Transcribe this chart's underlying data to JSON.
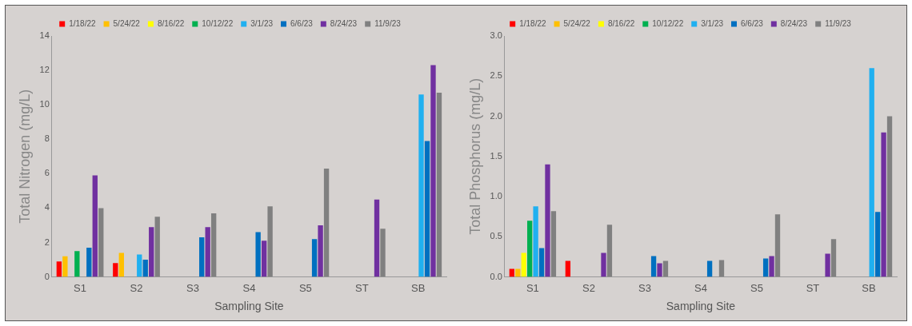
{
  "chart_data": [
    {
      "type": "bar",
      "categories": [
        "S1",
        "S2",
        "S3",
        "S4",
        "S5",
        "ST",
        "SB"
      ],
      "xlabel": "Sampling Site",
      "ylabel": "Total Nitrogen (mg/L)",
      "ylim": [
        0,
        14
      ],
      "yticks": [
        0,
        2,
        4,
        6,
        8,
        10,
        12,
        14
      ],
      "grid": false,
      "legend": "top",
      "series": [
        {
          "name": "1/18/22",
          "color": "#ff0000",
          "values": [
            0.9,
            0.8,
            null,
            null,
            null,
            null,
            null
          ]
        },
        {
          "name": "5/24/22",
          "color": "#ffc000",
          "values": [
            1.2,
            1.4,
            null,
            null,
            null,
            null,
            null
          ]
        },
        {
          "name": "8/16/22",
          "color": "#ffff00",
          "values": [
            null,
            null,
            null,
            null,
            null,
            null,
            null
          ]
        },
        {
          "name": "10/12/22",
          "color": "#00b050",
          "values": [
            1.5,
            null,
            null,
            null,
            null,
            null,
            null
          ]
        },
        {
          "name": "3/1/23",
          "color": "#20b0f0",
          "values": [
            null,
            1.3,
            null,
            null,
            null,
            null,
            10.6
          ]
        },
        {
          "name": "6/6/23",
          "color": "#0070c0",
          "values": [
            1.7,
            1.0,
            2.3,
            2.6,
            2.2,
            null,
            7.9
          ]
        },
        {
          "name": "8/24/23",
          "color": "#7030a0",
          "values": [
            5.9,
            2.9,
            2.9,
            2.1,
            3.0,
            4.5,
            12.3
          ]
        },
        {
          "name": "11/9/23",
          "color": "#808080",
          "values": [
            4.0,
            3.5,
            3.7,
            4.1,
            6.3,
            2.8,
            10.7
          ]
        }
      ]
    },
    {
      "type": "bar",
      "categories": [
        "S1",
        "S2",
        "S3",
        "S4",
        "S5",
        "ST",
        "SB"
      ],
      "xlabel": "Sampling Site",
      "ylabel": "Total Phosphorus (mg/L)",
      "ylim": [
        0,
        3
      ],
      "yticks": [
        {
          "value": 0,
          "label": "0.0"
        },
        0.5,
        {
          "value": 1,
          "label": "1.0"
        },
        1.5,
        {
          "value": 2,
          "label": "2.0"
        },
        2.5,
        {
          "value": 3,
          "label": "3.0"
        }
      ],
      "grid": false,
      "legend": "top",
      "series": [
        {
          "name": "1/18/22",
          "color": "#ff0000",
          "values": [
            0.1,
            0.2,
            null,
            null,
            null,
            null,
            null
          ]
        },
        {
          "name": "5/24/22",
          "color": "#ffc000",
          "values": [
            0.1,
            null,
            null,
            null,
            null,
            null,
            null
          ]
        },
        {
          "name": "8/16/22",
          "color": "#ffff00",
          "values": [
            0.3,
            null,
            null,
            null,
            null,
            null,
            null
          ]
        },
        {
          "name": "10/12/22",
          "color": "#00b050",
          "values": [
            0.7,
            null,
            null,
            null,
            null,
            null,
            null
          ]
        },
        {
          "name": "3/1/23",
          "color": "#20b0f0",
          "values": [
            0.88,
            null,
            null,
            null,
            null,
            null,
            2.6
          ]
        },
        {
          "name": "6/6/23",
          "color": "#0070c0",
          "values": [
            0.36,
            null,
            0.26,
            0.2,
            0.23,
            null,
            0.81
          ]
        },
        {
          "name": "8/24/23",
          "color": "#7030a0",
          "values": [
            1.4,
            0.3,
            0.17,
            null,
            0.26,
            0.29,
            1.8
          ]
        },
        {
          "name": "11/9/23",
          "color": "#808080",
          "values": [
            0.82,
            0.65,
            0.2,
            0.21,
            0.78,
            0.47,
            2.0
          ]
        }
      ]
    }
  ]
}
